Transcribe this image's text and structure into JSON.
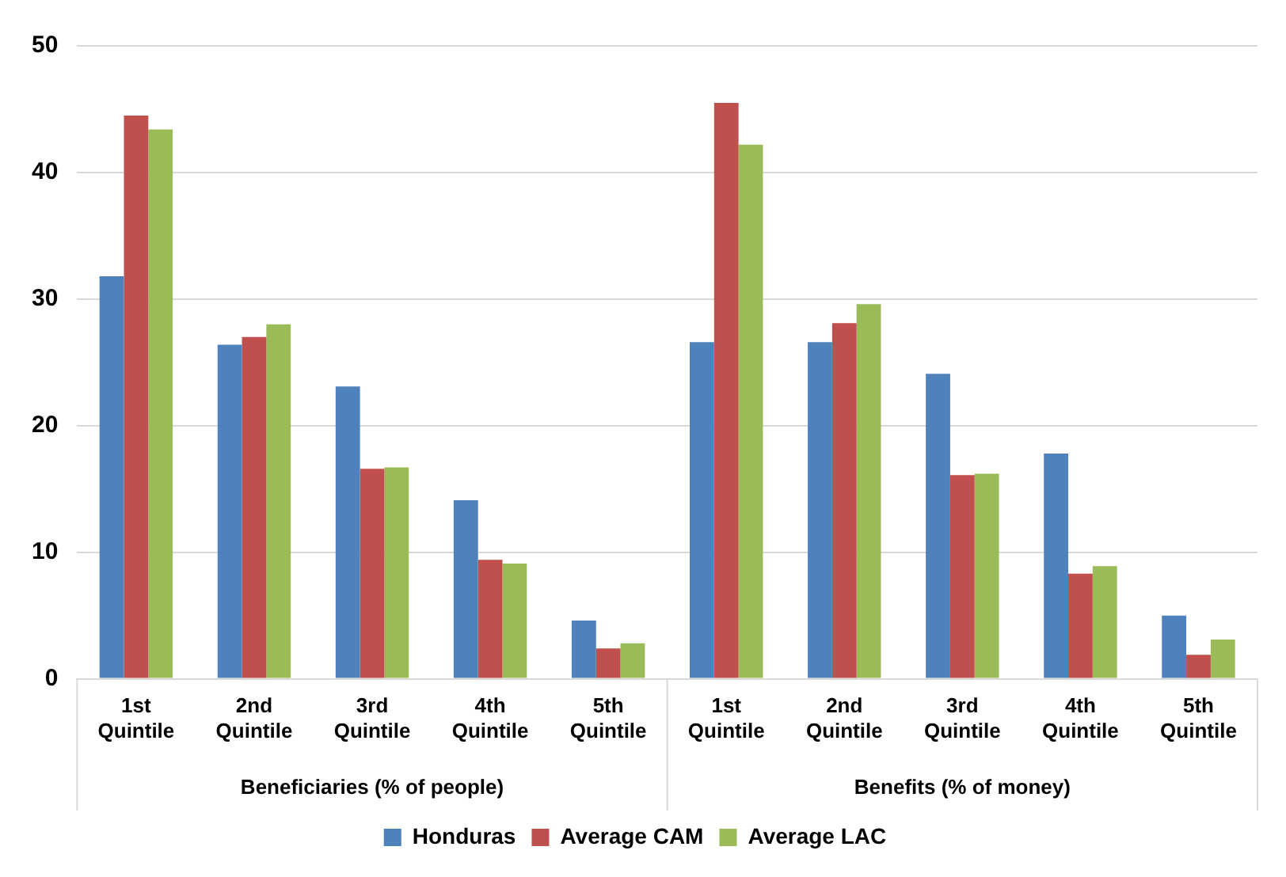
{
  "chart_data": {
    "type": "bar",
    "categories": [
      "1st Quintile",
      "2nd Quintile",
      "3rd Quintile",
      "4th Quintile",
      "5th Quintile",
      "1st Quintile",
      "2nd Quintile",
      "3rd Quintile",
      "4th Quintile",
      "5th Quintile"
    ],
    "series": [
      {
        "name": "Honduras",
        "color": "#4f81bd",
        "values": [
          31.8,
          26.4,
          23.1,
          14.1,
          4.6,
          26.6,
          26.6,
          24.1,
          17.8,
          5.0
        ]
      },
      {
        "name": "Average CAM",
        "color": "#c0504d",
        "values": [
          44.5,
          27.0,
          16.6,
          9.4,
          2.4,
          45.5,
          28.1,
          16.1,
          8.3,
          1.9
        ]
      },
      {
        "name": "Average LAC",
        "color": "#9bbb59",
        "values": [
          43.4,
          28.0,
          16.7,
          9.1,
          2.8,
          42.2,
          29.6,
          16.2,
          8.9,
          3.1
        ]
      }
    ],
    "annotations": [
      "Beneficiaries (% of people)",
      "Benefits (% of money)"
    ],
    "ylim": [
      0,
      50
    ],
    "yticks": [
      0,
      10,
      20,
      30,
      40,
      50
    ],
    "grid": "y",
    "legend": "bottom"
  }
}
